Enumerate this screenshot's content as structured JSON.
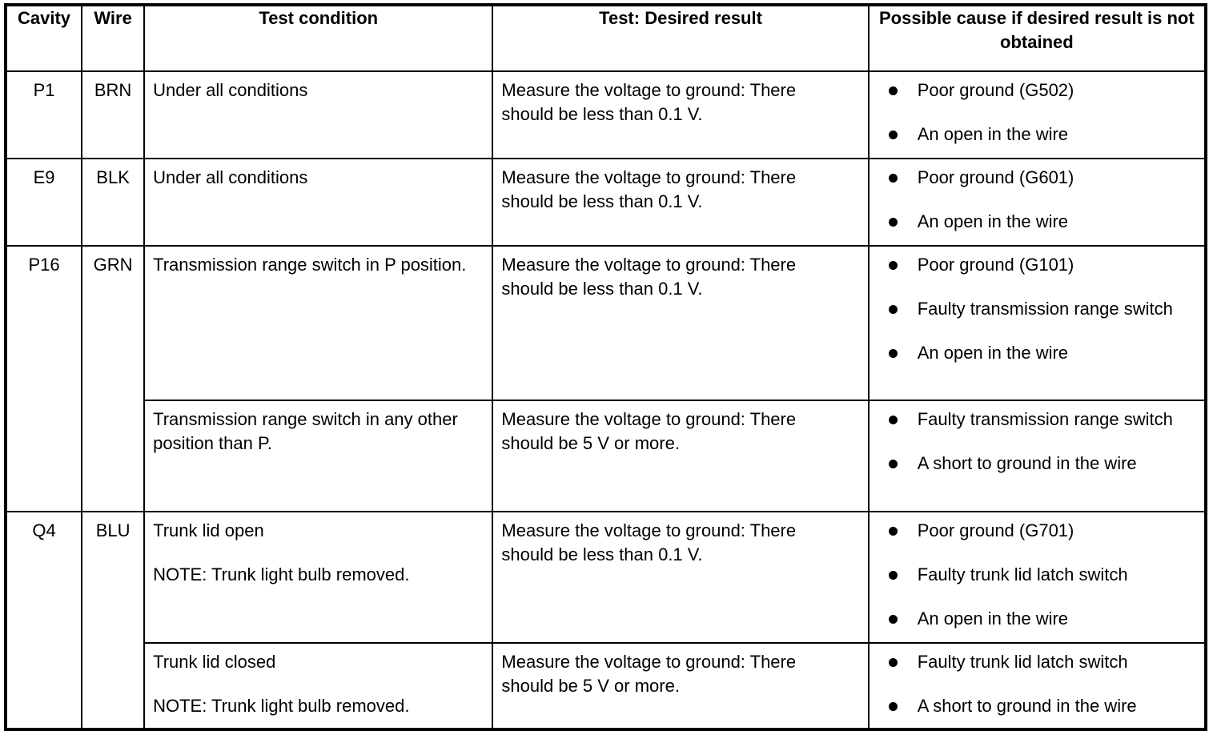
{
  "headers": [
    "Cavity",
    "Wire",
    "Test condition",
    "Test: Desired result",
    "Possible cause if desired result is not obtained"
  ],
  "rows": [
    {
      "cavity": "P1",
      "wire": "BRN",
      "tests": [
        {
          "condition": [
            "Under all conditions"
          ],
          "result": "Measure the voltage to ground: There should be less than 0.1 V.",
          "causes": [
            "Poor ground (G502)",
            "An open in the wire"
          ]
        }
      ]
    },
    {
      "cavity": "E9",
      "wire": "BLK",
      "tests": [
        {
          "condition": [
            "Under all conditions"
          ],
          "result": "Measure the voltage to ground: There should be less than 0.1 V.",
          "causes": [
            "Poor ground (G601)",
            "An open in the wire"
          ]
        }
      ]
    },
    {
      "cavity": "P16",
      "wire": "GRN",
      "tests": [
        {
          "condition": [
            "Transmission range switch in P position."
          ],
          "result": "Measure the voltage to ground: There should be less than 0.1 V.",
          "causes": [
            "Poor ground (G101)",
            "Faulty transmission range switch",
            "An open in the wire"
          ]
        },
        {
          "condition": [
            "Transmission range switch in any other position than P."
          ],
          "result": "Measure the voltage to ground: There should be 5 V or more.",
          "causes": [
            "Faulty transmission range switch",
            "A short to ground in the wire"
          ]
        }
      ]
    },
    {
      "cavity": "Q4",
      "wire": "BLU",
      "tests": [
        {
          "condition": [
            "Trunk lid open",
            "NOTE: Trunk light bulb removed."
          ],
          "result": "Measure the voltage to ground: There should be less than 0.1 V.",
          "causes": [
            "Poor ground (G701)",
            "Faulty trunk lid latch switch",
            "An open in the wire"
          ]
        },
        {
          "condition": [
            "Trunk lid closed",
            "NOTE: Trunk light bulb removed."
          ],
          "result": "Measure the voltage to ground: There should be 5 V or more.",
          "causes": [
            "Faulty trunk lid latch switch",
            "A short to ground in the wire"
          ]
        }
      ]
    }
  ]
}
